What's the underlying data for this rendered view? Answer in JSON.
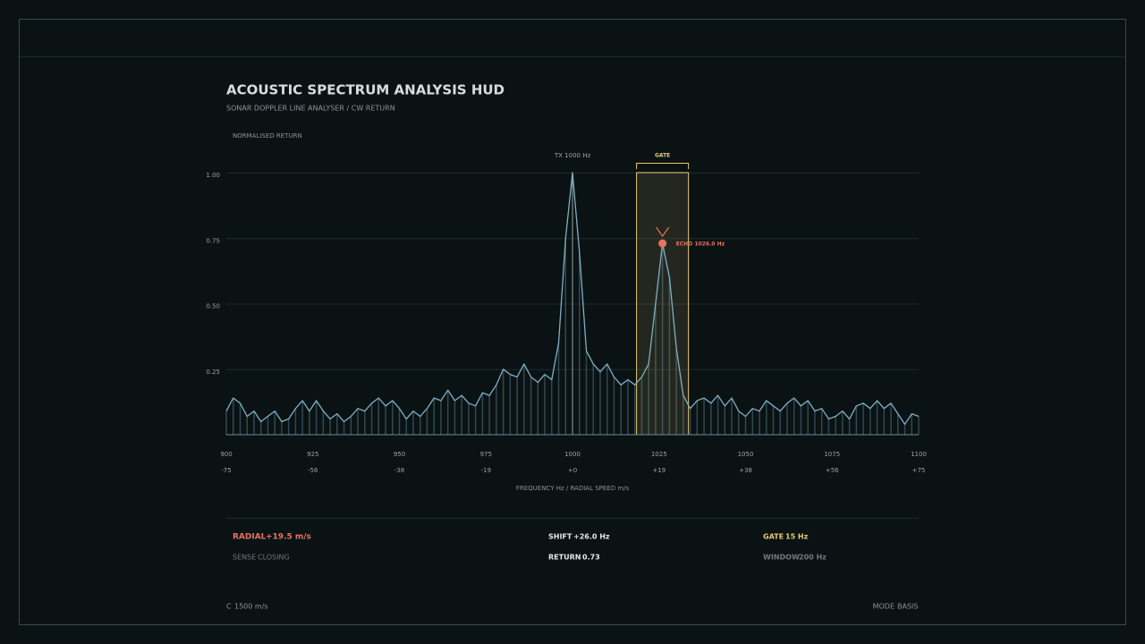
{
  "chart_data": {
    "type": "line",
    "title": "ACOUSTIC SPECTRUM ANALYSIS HUD",
    "subtitle": "SONAR DOPPLER LINE ANALYSER / CW RETURN",
    "y_label": "NORMALISED RETURN",
    "x_label": "FREQUENCY Hz / RADIAL SPEED m/s",
    "xlim": [
      900,
      1100
    ],
    "xticks": [
      900,
      925,
      950,
      975,
      1000,
      1025,
      1050,
      1075,
      1100
    ],
    "x2ticks": [
      {
        "value": 900,
        "label": "-75"
      },
      {
        "value": 925,
        "label": "-56"
      },
      {
        "value": 950,
        "label": "-38"
      },
      {
        "value": 975,
        "label": "-19"
      },
      {
        "value": 1000,
        "label": "+0"
      },
      {
        "value": 1025,
        "label": "+19"
      },
      {
        "value": 1050,
        "label": "+38"
      },
      {
        "value": 1075,
        "label": "+56"
      },
      {
        "value": 1100,
        "label": "+75"
      }
    ],
    "ylim": [
      0,
      1
    ],
    "yticks": [
      0.25,
      {
        "value": 0.5,
        "label": "0.50"
      },
      0.75,
      {
        "value": 1,
        "label": "1.00"
      }
    ],
    "grid": true,
    "x": [
      900,
      902,
      904,
      906,
      908,
      910,
      912,
      914,
      916,
      918,
      920,
      922,
      924,
      926,
      928,
      930,
      932,
      934,
      936,
      938,
      940,
      942,
      944,
      946,
      948,
      950,
      952,
      954,
      956,
      958,
      960,
      962,
      964,
      966,
      968,
      970,
      972,
      974,
      976,
      978,
      980,
      982,
      984,
      986,
      988,
      990,
      992,
      994,
      996,
      998,
      1000,
      1002,
      1004,
      1006,
      1008,
      1010,
      1012,
      1014,
      1016,
      1018,
      1020,
      1022,
      1024,
      1026,
      1028,
      1030,
      1032,
      1034,
      1036,
      1038,
      1040,
      1042,
      1044,
      1046,
      1048,
      1050,
      1052,
      1054,
      1056,
      1058,
      1060,
      1062,
      1064,
      1066,
      1068,
      1070,
      1072,
      1074,
      1076,
      1078,
      1080,
      1082,
      1084,
      1086,
      1088,
      1090,
      1092,
      1094,
      1096,
      1098,
      1100
    ],
    "series": [
      {
        "color": "#7fb0c4",
        "values": [
          0.09,
          0.14,
          0.12,
          0.07,
          0.09,
          0.05,
          0.07,
          0.09,
          0.05,
          0.06,
          0.1,
          0.13,
          0.09,
          0.13,
          0.09,
          0.06,
          0.08,
          0.05,
          0.07,
          0.1,
          0.09,
          0.12,
          0.14,
          0.11,
          0.13,
          0.1,
          0.06,
          0.09,
          0.07,
          0.1,
          0.14,
          0.13,
          0.17,
          0.13,
          0.15,
          0.12,
          0.11,
          0.16,
          0.15,
          0.19,
          0.25,
          0.23,
          0.22,
          0.27,
          0.22,
          0.2,
          0.23,
          0.21,
          0.35,
          0.75,
          1.0,
          0.7,
          0.32,
          0.27,
          0.24,
          0.27,
          0.22,
          0.19,
          0.21,
          0.19,
          0.22,
          0.27,
          0.5,
          0.73,
          0.6,
          0.33,
          0.15,
          0.1,
          0.13,
          0.14,
          0.12,
          0.15,
          0.11,
          0.14,
          0.09,
          0.07,
          0.1,
          0.09,
          0.13,
          0.11,
          0.09,
          0.12,
          0.14,
          0.11,
          0.13,
          0.09,
          0.1,
          0.06,
          0.07,
          0.09,
          0.06,
          0.11,
          0.12,
          0.1,
          0.13,
          0.1,
          0.12,
          0.08,
          0.04,
          0.08,
          0.07
        ]
      }
    ],
    "tx_marker": {
      "label": "TX 1000 Hz",
      "x": 1000
    },
    "gate": {
      "label": "GATE",
      "start": 1018.5,
      "end": 1033.5,
      "color": "#e8c872"
    },
    "echo": {
      "label": "ECHO 1026.0 Hz",
      "x": 1026,
      "y": 0.73,
      "color": "#e8735f"
    }
  },
  "readouts": {
    "radial": {
      "label": "RADIAL",
      "value": "+19.5 m/s"
    },
    "sense": {
      "label": "SENSE",
      "value": "CLOSING"
    },
    "shift": {
      "label": "SHIFT",
      "value": "+26.0 Hz"
    },
    "return": {
      "label": "RETURN",
      "value": "0.73"
    },
    "gate": {
      "label": "GATE",
      "value": "15 Hz"
    },
    "window": {
      "label": "WINDOW",
      "value": "200 Hz"
    }
  },
  "footer": {
    "left_label": "C",
    "left_value": "1500 m/s",
    "right_label": "MODE",
    "right_value": "BASIS"
  }
}
